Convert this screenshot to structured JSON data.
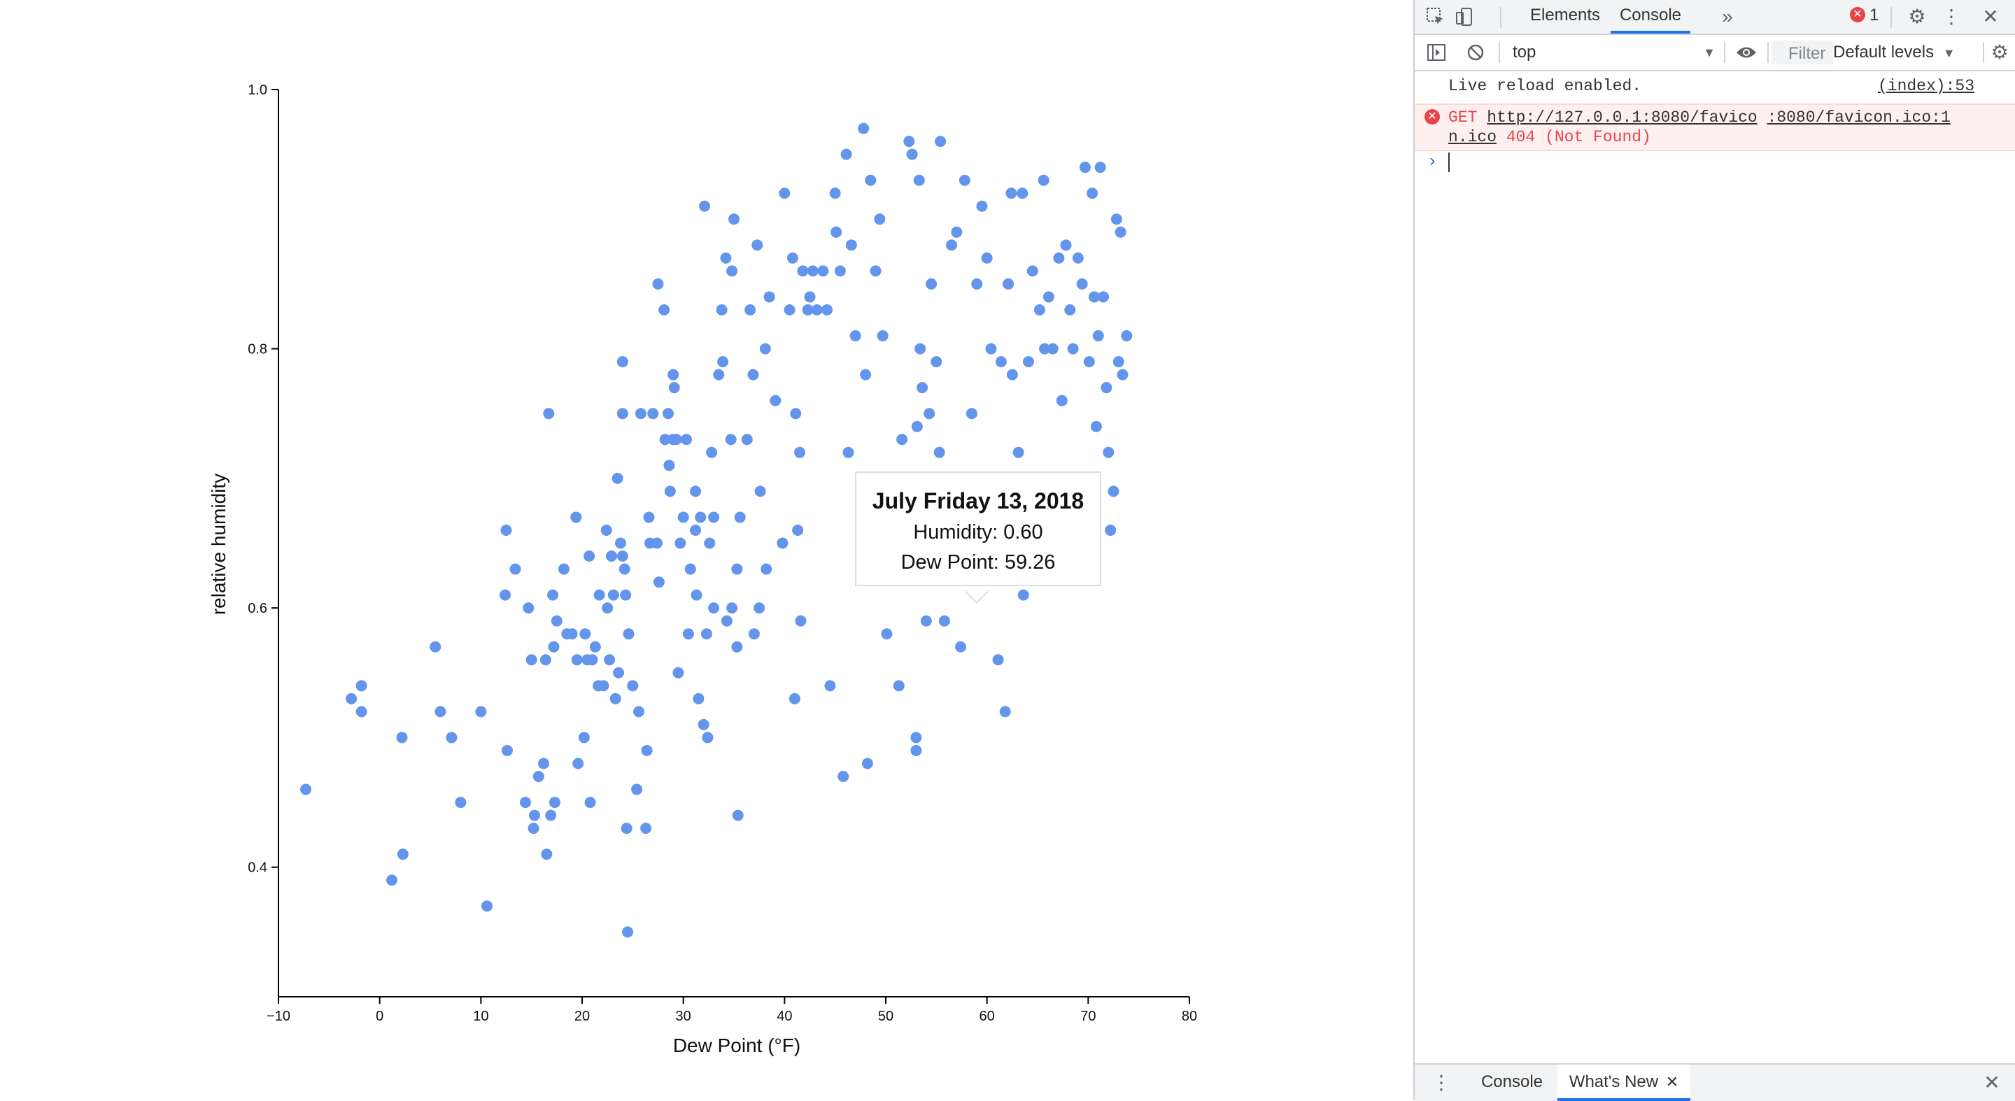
{
  "chart_data": {
    "type": "scatter",
    "xlabel": "Dew Point (°F)",
    "ylabel": "relative humidity",
    "xlim": [
      -10,
      80
    ],
    "ylim": [
      0.3,
      1.0
    ],
    "xticks": [
      "−10",
      "0",
      "10",
      "20",
      "30",
      "40",
      "50",
      "60",
      "70",
      "80"
    ],
    "yticks": [
      "0.4",
      "0.6",
      "0.8",
      "1.0"
    ],
    "color": "#6495ED",
    "points": [
      [
        -7.3,
        0.46
      ],
      [
        -2.8,
        0.53
      ],
      [
        -1.8,
        0.54
      ],
      [
        -1.8,
        0.52
      ],
      [
        1.2,
        0.39
      ],
      [
        2.3,
        0.41
      ],
      [
        2.2,
        0.5
      ],
      [
        5.5,
        0.57
      ],
      [
        6,
        0.52
      ],
      [
        7.1,
        0.5
      ],
      [
        8,
        0.45
      ],
      [
        10,
        0.52
      ],
      [
        10.6,
        0.37
      ],
      [
        12.6,
        0.49
      ],
      [
        12.4,
        0.61
      ],
      [
        12.5,
        0.66
      ],
      [
        13.4,
        0.63
      ],
      [
        14.4,
        0.45
      ],
      [
        14.7,
        0.6
      ],
      [
        15,
        0.56
      ],
      [
        15.2,
        0.43
      ],
      [
        15.3,
        0.44
      ],
      [
        15.7,
        0.47
      ],
      [
        16.2,
        0.48
      ],
      [
        16.5,
        0.41
      ],
      [
        16.4,
        0.56
      ],
      [
        16.7,
        0.75
      ],
      [
        16.9,
        0.44
      ],
      [
        17.1,
        0.61
      ],
      [
        17.2,
        0.57
      ],
      [
        17.3,
        0.45
      ],
      [
        17.5,
        0.59
      ],
      [
        18.2,
        0.63
      ],
      [
        18.5,
        0.58
      ],
      [
        19,
        0.58
      ],
      [
        19.6,
        0.48
      ],
      [
        19.5,
        0.56
      ],
      [
        19.4,
        0.67
      ],
      [
        20.2,
        0.5
      ],
      [
        20.3,
        0.58
      ],
      [
        20.5,
        0.56
      ],
      [
        20.7,
        0.64
      ],
      [
        20.8,
        0.45
      ],
      [
        21,
        0.56
      ],
      [
        21.3,
        0.57
      ],
      [
        21.6,
        0.54
      ],
      [
        21.7,
        0.61
      ],
      [
        22.1,
        0.54
      ],
      [
        22.4,
        0.66
      ],
      [
        22.5,
        0.6
      ],
      [
        22.7,
        0.56
      ],
      [
        22.9,
        0.64
      ],
      [
        23.1,
        0.61
      ],
      [
        23.3,
        0.53
      ],
      [
        23.5,
        0.7
      ],
      [
        23.8,
        0.65
      ],
      [
        23.6,
        0.55
      ],
      [
        24,
        0.79
      ],
      [
        24,
        0.75
      ],
      [
        24.2,
        0.63
      ],
      [
        24,
        0.64
      ],
      [
        24.4,
        0.43
      ],
      [
        24.5,
        0.35
      ],
      [
        24.3,
        0.61
      ],
      [
        24.6,
        0.58
      ],
      [
        25,
        0.54
      ],
      [
        25.4,
        0.46
      ],
      [
        25.8,
        0.75
      ],
      [
        25.6,
        0.52
      ],
      [
        26.3,
        0.43
      ],
      [
        26.4,
        0.49
      ],
      [
        26.6,
        0.67
      ],
      [
        26.7,
        0.65
      ],
      [
        27,
        0.75
      ],
      [
        27.5,
        0.85
      ],
      [
        27.4,
        0.65
      ],
      [
        27.6,
        0.62
      ],
      [
        28.1,
        0.83
      ],
      [
        28.2,
        0.73
      ],
      [
        28.5,
        0.75
      ],
      [
        28.6,
        0.71
      ],
      [
        28.7,
        0.69
      ],
      [
        29,
        0.73
      ],
      [
        29.1,
        0.77
      ],
      [
        29,
        0.78
      ],
      [
        29.5,
        0.55
      ],
      [
        29.3,
        0.73
      ],
      [
        29.7,
        0.65
      ],
      [
        30,
        0.67
      ],
      [
        30.3,
        0.73
      ],
      [
        30.5,
        0.58
      ],
      [
        30.7,
        0.63
      ],
      [
        31.2,
        0.66
      ],
      [
        31.2,
        0.69
      ],
      [
        31.3,
        0.61
      ],
      [
        31.5,
        0.53
      ],
      [
        31.7,
        0.67
      ],
      [
        32,
        0.51
      ],
      [
        32.1,
        0.91
      ],
      [
        32.3,
        0.58
      ],
      [
        32.4,
        0.5
      ],
      [
        32.6,
        0.65
      ],
      [
        32.8,
        0.72
      ],
      [
        33,
        0.6
      ],
      [
        33,
        0.67
      ],
      [
        33.5,
        0.78
      ],
      [
        33.8,
        0.83
      ],
      [
        33.9,
        0.79
      ],
      [
        34.2,
        0.87
      ],
      [
        34.3,
        0.59
      ],
      [
        34.7,
        0.73
      ],
      [
        34.8,
        0.6
      ],
      [
        34.8,
        0.86
      ],
      [
        35,
        0.9
      ],
      [
        35.3,
        0.63
      ],
      [
        35.3,
        0.57
      ],
      [
        35.4,
        0.44
      ],
      [
        35.6,
        0.67
      ],
      [
        36.3,
        0.73
      ],
      [
        36.6,
        0.83
      ],
      [
        36.9,
        0.78
      ],
      [
        37,
        0.58
      ],
      [
        37.3,
        0.88
      ],
      [
        37.5,
        0.6
      ],
      [
        37.6,
        0.69
      ],
      [
        38.1,
        0.8
      ],
      [
        38.2,
        0.63
      ],
      [
        38.5,
        0.84
      ],
      [
        39.1,
        0.76
      ],
      [
        39.8,
        0.65
      ],
      [
        40,
        0.92
      ],
      [
        40.5,
        0.83
      ],
      [
        40.8,
        0.87
      ],
      [
        41,
        0.53
      ],
      [
        41.1,
        0.75
      ],
      [
        41.3,
        0.66
      ],
      [
        41.5,
        0.72
      ],
      [
        41.6,
        0.59
      ],
      [
        41.8,
        0.86
      ],
      [
        42.3,
        0.83
      ],
      [
        42.5,
        0.84
      ],
      [
        42.8,
        0.86
      ],
      [
        43.2,
        0.83
      ],
      [
        43.8,
        0.86
      ],
      [
        44.2,
        0.83
      ],
      [
        44.5,
        0.54
      ],
      [
        45,
        0.92
      ],
      [
        45.1,
        0.89
      ],
      [
        45.5,
        0.86
      ],
      [
        45.8,
        0.47
      ],
      [
        46.1,
        0.95
      ],
      [
        46.3,
        0.72
      ],
      [
        46.6,
        0.88
      ],
      [
        47,
        0.81
      ],
      [
        47.8,
        0.97
      ],
      [
        48,
        0.78
      ],
      [
        48.2,
        0.48
      ],
      [
        48.5,
        0.93
      ],
      [
        49,
        0.86
      ],
      [
        49.4,
        0.9
      ],
      [
        49.7,
        0.81
      ],
      [
        50.1,
        0.58
      ],
      [
        51.3,
        0.54
      ],
      [
        51.6,
        0.73
      ],
      [
        52.3,
        0.96
      ],
      [
        52.6,
        0.95
      ],
      [
        53,
        0.49
      ],
      [
        53,
        0.5
      ],
      [
        53.1,
        0.74
      ],
      [
        53.3,
        0.93
      ],
      [
        53.4,
        0.8
      ],
      [
        53.6,
        0.77
      ],
      [
        54,
        0.59
      ],
      [
        54.3,
        0.75
      ],
      [
        54.5,
        0.85
      ],
      [
        55,
        0.79
      ],
      [
        55.3,
        0.72
      ],
      [
        55.4,
        0.96
      ],
      [
        55.8,
        0.59
      ],
      [
        56.5,
        0.88
      ],
      [
        57,
        0.89
      ],
      [
        57.4,
        0.57
      ],
      [
        57.8,
        0.93
      ],
      [
        58.5,
        0.75
      ],
      [
        59,
        0.85
      ],
      [
        59.5,
        0.91
      ],
      [
        60,
        0.87
      ],
      [
        60.4,
        0.8
      ],
      [
        61.1,
        0.56
      ],
      [
        61.4,
        0.79
      ],
      [
        61.8,
        0.52
      ],
      [
        62.1,
        0.85
      ],
      [
        62.4,
        0.92
      ],
      [
        62.5,
        0.78
      ],
      [
        63.1,
        0.72
      ],
      [
        63.5,
        0.92
      ],
      [
        63.6,
        0.61
      ],
      [
        64.1,
        0.79
      ],
      [
        64.5,
        0.86
      ],
      [
        65.2,
        0.83
      ],
      [
        65.6,
        0.93
      ],
      [
        65.7,
        0.8
      ],
      [
        66.1,
        0.84
      ],
      [
        66.5,
        0.8
      ],
      [
        67.1,
        0.87
      ],
      [
        67.4,
        0.76
      ],
      [
        67.8,
        0.88
      ],
      [
        68.2,
        0.83
      ],
      [
        68.5,
        0.8
      ],
      [
        69,
        0.87
      ],
      [
        69.4,
        0.85
      ],
      [
        69.7,
        0.94
      ],
      [
        70.1,
        0.79
      ],
      [
        70.4,
        0.92
      ],
      [
        70.6,
        0.84
      ],
      [
        70.8,
        0.74
      ],
      [
        71,
        0.81
      ],
      [
        71.2,
        0.94
      ],
      [
        71.5,
        0.84
      ],
      [
        71.8,
        0.77
      ],
      [
        72,
        0.72
      ],
      [
        72.2,
        0.66
      ],
      [
        72.5,
        0.69
      ],
      [
        72.8,
        0.9
      ],
      [
        73,
        0.79
      ],
      [
        73.2,
        0.89
      ],
      [
        73.4,
        0.78
      ],
      [
        73.8,
        0.81
      ]
    ]
  },
  "tooltip": {
    "title": "July Friday 13, 2018",
    "humidity": "Humidity: 0.60",
    "dew_point": "Dew Point: 59.26"
  },
  "devtools": {
    "tabs": [
      "Elements",
      "Console"
    ],
    "active_tab": "Console",
    "error_count": "1",
    "context": "top",
    "filter_placeholder": "Filter",
    "levels": "Default levels",
    "logs": {
      "info_message": "Live reload enabled.",
      "info_source": "(index):53",
      "error_method": "GET",
      "error_url_part1": "http://127.0.0.1:8080/favico",
      "error_url_part2": "n.ico",
      "error_status": "404 (Not Found)",
      "error_source_part1": ":8080/favicon.ico:1"
    },
    "drawer_tabs": [
      "Console",
      "What's New"
    ]
  }
}
